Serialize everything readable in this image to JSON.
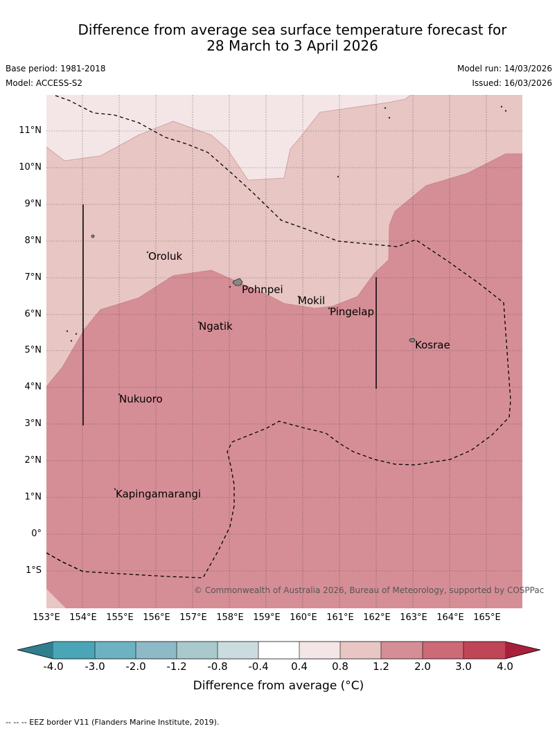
{
  "title": {
    "line1": "Difference from average sea surface temperature forecast for",
    "line2": "28 March to 3 April 2026"
  },
  "meta": {
    "base_period": "Base period: 1981-2018",
    "model": "Model: ACCESS-S2",
    "model_run": "Model run: 14/03/2026",
    "issued": "Issued: 16/03/2026"
  },
  "map": {
    "lat_labels": [
      "11°N",
      "10°N",
      "9°N",
      "8°N",
      "7°N",
      "6°N",
      "5°N",
      "4°N",
      "3°N",
      "2°N",
      "1°N",
      "0°",
      "1°S"
    ],
    "lon_labels": [
      "153°E",
      "154°E",
      "155°E",
      "156°E",
      "157°E",
      "158°E",
      "159°E",
      "160°E",
      "161°E",
      "162°E",
      "163°E",
      "164°E",
      "165°E"
    ],
    "places": [
      "Oroluk",
      "Pohnpei",
      "Mokil",
      "Pingelap",
      "Ngatik",
      "Kosrae",
      "Nukuoro",
      "Kapingamarangi"
    ],
    "copyright": "© Commonwealth of Australia 2026, Bureau of Meteorology, supported by COSPPac",
    "colors": {
      "band_0_4_to_0_8": "#f4e6e6",
      "band_0_8_to_1_2": "#e8c6c3",
      "band_1_2_to_2_0": "#d68e96"
    }
  },
  "colorbar": {
    "ticks": [
      "-4.0",
      "-3.0",
      "-2.0",
      "-1.2",
      "-0.8",
      "-0.4",
      "0.4",
      "0.8",
      "1.2",
      "2.0",
      "3.0",
      "4.0"
    ],
    "colors": [
      "#2f7f8e",
      "#4aa6b6",
      "#6db2c1",
      "#8dbac6",
      "#a9c9cd",
      "#cbdcdf",
      "#ffffff",
      "#f4e6e6",
      "#e8c6c3",
      "#d68e96",
      "#cc6a76",
      "#bf4657",
      "#a81f3c"
    ],
    "label": "Difference from average (°C)"
  },
  "footnote": "--  --  -- EEZ border V11 (Flanders Marine Institute, 2019)."
}
